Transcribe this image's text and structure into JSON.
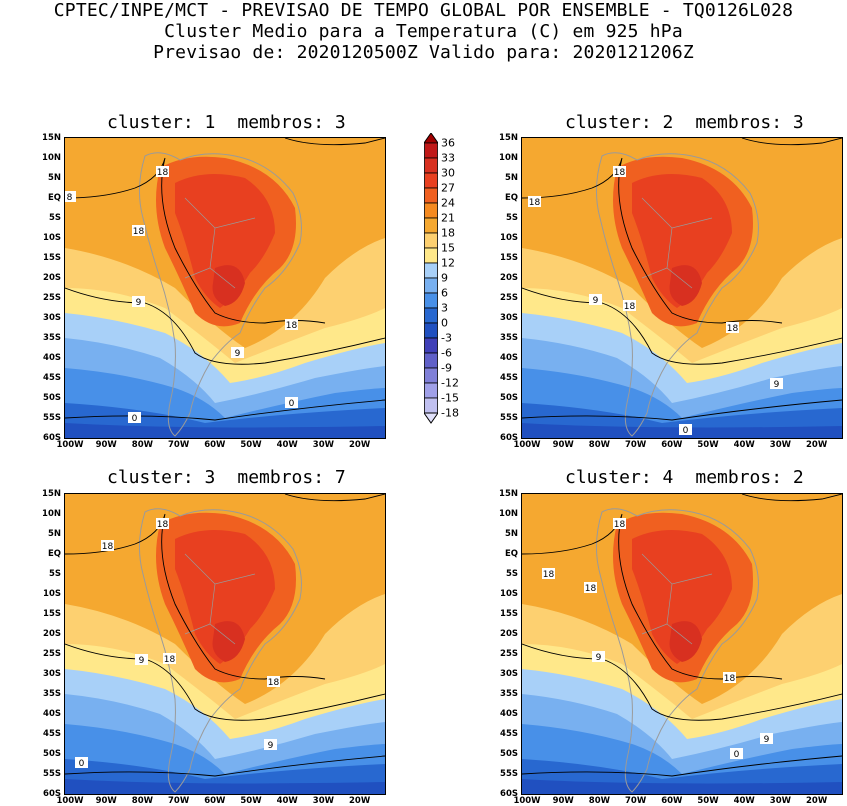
{
  "header": {
    "line1": "CPTEC/INPE/MCT - PREVISAO DE TEMPO GLOBAL POR ENSEMBLE - TQ0126L028",
    "line2": "Cluster Medio para a Temperatura (C) em 925 hPa",
    "line3": "Previsao de: 2020120500Z   Valido para: 2020121206Z"
  },
  "axes": {
    "lat_labels": [
      "15N",
      "10N",
      "5N",
      "EQ",
      "5S",
      "10S",
      "15S",
      "20S",
      "25S",
      "30S",
      "35S",
      "40S",
      "45S",
      "50S",
      "55S",
      "60S"
    ],
    "lon_labels": [
      "100W",
      "90W",
      "80W",
      "70W",
      "60W",
      "50W",
      "40W",
      "30W",
      "20W"
    ]
  },
  "colorbar": {
    "labels": [
      "36",
      "33",
      "30",
      "27",
      "24",
      "21",
      "18",
      "15",
      "12",
      "9",
      "6",
      "3",
      "0",
      "-3",
      "-6",
      "-9",
      "-12",
      "-15",
      "-18"
    ],
    "colors": [
      "#a00000",
      "#c01818",
      "#d83020",
      "#e84020",
      "#f06020",
      "#f58a20",
      "#f5a830",
      "#fdd070",
      "#ffe88a",
      "#a8d0f8",
      "#78b0f0",
      "#4890e8",
      "#2868d0",
      "#2050c0",
      "#4040b8",
      "#6060c8",
      "#8080d8",
      "#a0a0e8",
      "#c0c0f0",
      "#e0e0fa"
    ]
  },
  "panels": [
    {
      "cluster_label": "cluster: 1",
      "members_label": "membros: 3",
      "contour_labels": [
        {
          "t": "18"
        },
        {
          "t": "18"
        },
        {
          "t": "8"
        },
        {
          "t": "18"
        },
        {
          "t": "9"
        },
        {
          "t": "9"
        },
        {
          "t": "0"
        },
        {
          "t": "0"
        }
      ]
    },
    {
      "cluster_label": "cluster: 2",
      "members_label": "membros: 3",
      "contour_labels": [
        {
          "t": "18"
        },
        {
          "t": "18"
        },
        {
          "t": "18"
        },
        {
          "t": "18"
        },
        {
          "t": "9"
        },
        {
          "t": "9"
        },
        {
          "t": "0"
        }
      ]
    },
    {
      "cluster_label": "cluster: 3",
      "members_label": "membros: 7",
      "contour_labels": [
        {
          "t": "18"
        },
        {
          "t": "18"
        },
        {
          "t": "18"
        },
        {
          "t": "18"
        },
        {
          "t": "9"
        },
        {
          "t": "9"
        },
        {
          "t": "0"
        }
      ]
    },
    {
      "cluster_label": "cluster: 4",
      "members_label": "membros: 2",
      "contour_labels": [
        {
          "t": "18"
        },
        {
          "t": "18"
        },
        {
          "t": "18"
        },
        {
          "t": "18"
        },
        {
          "t": "9"
        },
        {
          "t": "9"
        },
        {
          "t": "0"
        }
      ]
    }
  ]
}
